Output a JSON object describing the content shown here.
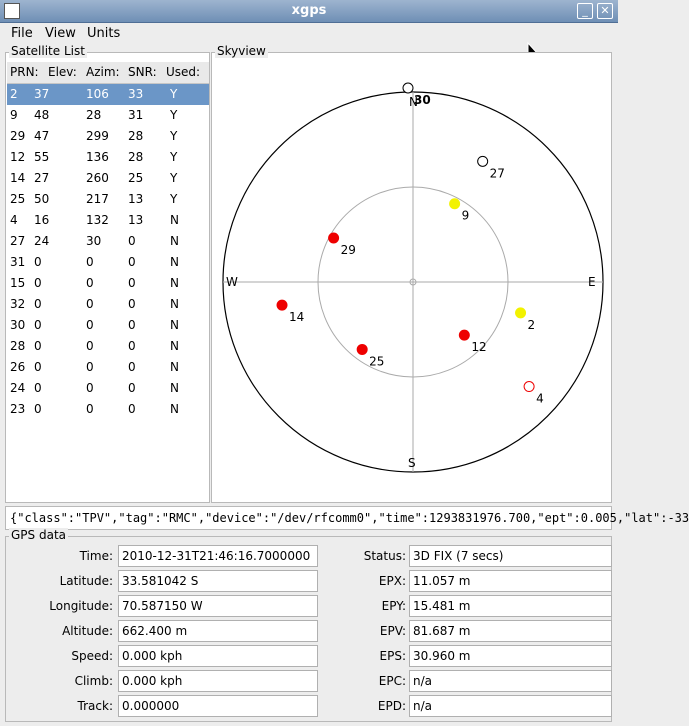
{
  "window": {
    "title": "xgps"
  },
  "menu": [
    "File",
    "View",
    "Units"
  ],
  "satellite_list": {
    "title": "Satellite List",
    "headers": [
      "PRN:",
      "Elev:",
      "Azim:",
      "SNR:",
      "Used:"
    ],
    "rows": [
      [
        "2",
        "37",
        "106",
        "33",
        "Y"
      ],
      [
        "9",
        "48",
        "28",
        "31",
        "Y"
      ],
      [
        "29",
        "47",
        "299",
        "28",
        "Y"
      ],
      [
        "12",
        "55",
        "136",
        "28",
        "Y"
      ],
      [
        "14",
        "27",
        "260",
        "25",
        "Y"
      ],
      [
        "25",
        "50",
        "217",
        "13",
        "Y"
      ],
      [
        "4",
        "16",
        "132",
        "13",
        "N"
      ],
      [
        "27",
        "24",
        "30",
        "0",
        "N"
      ],
      [
        "31",
        "0",
        "0",
        "0",
        "N"
      ],
      [
        "15",
        "0",
        "0",
        "0",
        "N"
      ],
      [
        "32",
        "0",
        "0",
        "0",
        "N"
      ],
      [
        "30",
        "0",
        "0",
        "0",
        "N"
      ],
      [
        "28",
        "0",
        "0",
        "0",
        "N"
      ],
      [
        "26",
        "0",
        "0",
        "0",
        "N"
      ],
      [
        "24",
        "0",
        "0",
        "0",
        "N"
      ],
      [
        "23",
        "0",
        "0",
        "0",
        "N"
      ]
    ]
  },
  "skyview": {
    "title": "Skyview",
    "compass": {
      "n": "N",
      "s": "S",
      "e": "E",
      "w": "W"
    },
    "satellites": [
      {
        "prn": "2",
        "style": "yellow"
      },
      {
        "prn": "9",
        "style": "yellow"
      },
      {
        "prn": "29",
        "style": "red"
      },
      {
        "prn": "12",
        "style": "red"
      },
      {
        "prn": "14",
        "style": "red"
      },
      {
        "prn": "25",
        "style": "red"
      },
      {
        "prn": "4",
        "style": "red-ring"
      },
      {
        "prn": "27",
        "style": "black-ring"
      }
    ],
    "overlap_label": "30"
  },
  "json_line": "{\"class\":\"TPV\",\"tag\":\"RMC\",\"device\":\"/dev/rfcomm0\",\"time\":1293831976.700,\"ept\":0.005,\"lat\":-33",
  "gps_data": {
    "title": "GPS data",
    "left": [
      {
        "label": "Time:",
        "value": "2010-12-31T21:46:16.7000000"
      },
      {
        "label": "Latitude:",
        "value": "33.581042 S"
      },
      {
        "label": "Longitude:",
        "value": "70.587150 W"
      },
      {
        "label": "Altitude:",
        "value": "662.400 m"
      },
      {
        "label": "Speed:",
        "value": "0.000 kph"
      },
      {
        "label": "Climb:",
        "value": "0.000 kph"
      },
      {
        "label": "Track:",
        "value": "0.000000"
      }
    ],
    "right": [
      {
        "label": "Status:",
        "value": "3D FIX (7 secs)"
      },
      {
        "label": "EPX:",
        "value": "11.057 m"
      },
      {
        "label": "EPY:",
        "value": "15.481 m"
      },
      {
        "label": "EPV:",
        "value": "81.687 m"
      },
      {
        "label": "EPS:",
        "value": "30.960 m"
      },
      {
        "label": "EPC:",
        "value": "n/a"
      },
      {
        "label": "EPD:",
        "value": "n/a"
      }
    ]
  }
}
